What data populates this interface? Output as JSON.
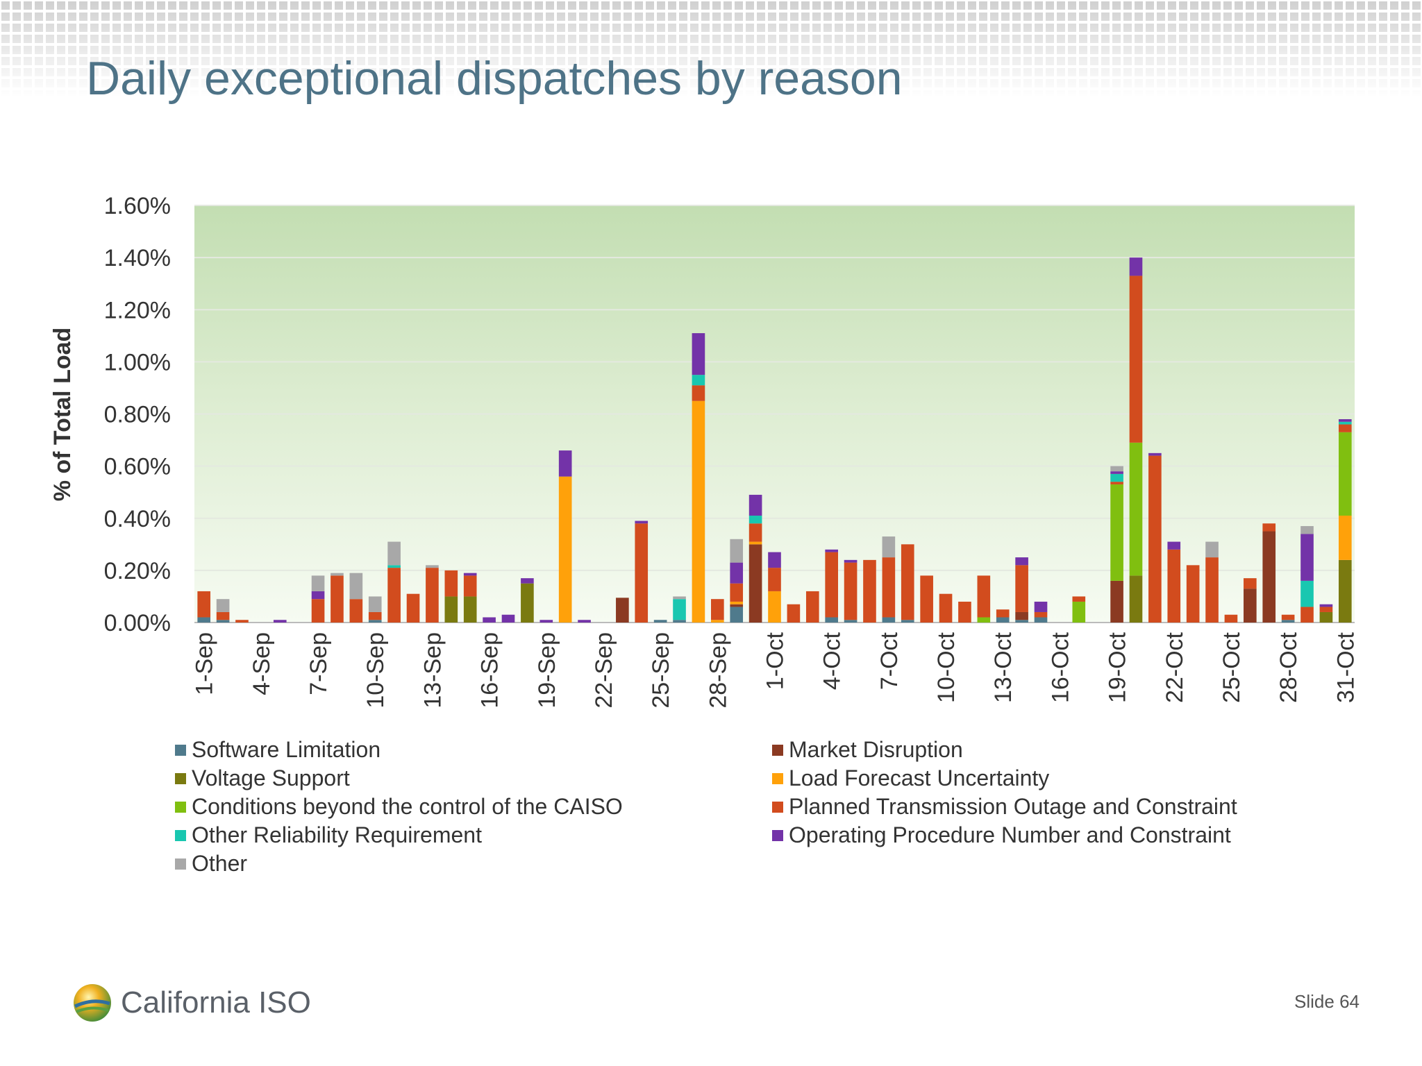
{
  "slide": {
    "title": "Daily exceptional dispatches by reason",
    "slide_number": "Slide 64",
    "logo_text": "California ISO"
  },
  "chart_data": {
    "type": "bar",
    "stacked": true,
    "title": "",
    "xlabel": "",
    "ylabel": "% of Total Load",
    "ylim": [
      0,
      1.6
    ],
    "yticks": [
      "0.00%",
      "0.20%",
      "0.40%",
      "0.60%",
      "0.80%",
      "1.00%",
      "1.20%",
      "1.40%",
      "1.60%"
    ],
    "grid": true,
    "legend_position": "bottom",
    "plot_background": "green gradient",
    "categories": [
      "1-Sep",
      "2-Sep",
      "3-Sep",
      "4-Sep",
      "5-Sep",
      "6-Sep",
      "7-Sep",
      "8-Sep",
      "9-Sep",
      "10-Sep",
      "11-Sep",
      "12-Sep",
      "13-Sep",
      "14-Sep",
      "15-Sep",
      "16-Sep",
      "17-Sep",
      "18-Sep",
      "19-Sep",
      "20-Sep",
      "21-Sep",
      "22-Sep",
      "23-Sep",
      "24-Sep",
      "25-Sep",
      "26-Sep",
      "27-Sep",
      "28-Sep",
      "29-Sep",
      "30-Sep",
      "1-Oct",
      "2-Oct",
      "3-Oct",
      "4-Oct",
      "5-Oct",
      "6-Oct",
      "7-Oct",
      "8-Oct",
      "9-Oct",
      "10-Oct",
      "11-Oct",
      "12-Oct",
      "13-Oct",
      "14-Oct",
      "15-Oct",
      "16-Oct",
      "17-Oct",
      "18-Oct",
      "19-Oct",
      "20-Oct",
      "21-Oct",
      "22-Oct",
      "23-Oct",
      "24-Oct",
      "25-Oct",
      "26-Oct",
      "27-Oct",
      "28-Oct",
      "29-Oct",
      "30-Oct",
      "31-Oct"
    ],
    "tick_labels": [
      "1-Sep",
      "4-Sep",
      "7-Sep",
      "10-Sep",
      "13-Sep",
      "16-Sep",
      "19-Sep",
      "22-Sep",
      "25-Sep",
      "28-Sep",
      "1-Oct",
      "4-Oct",
      "7-Oct",
      "10-Oct",
      "13-Oct",
      "16-Oct",
      "19-Oct",
      "22-Oct",
      "25-Oct",
      "28-Oct",
      "31-Oct"
    ],
    "series": [
      {
        "name": "Software Limitation",
        "color": "#4f7a8c",
        "values": [
          0.02,
          0.01,
          0,
          0,
          0,
          0,
          0,
          0,
          0,
          0.01,
          0,
          0,
          0,
          0,
          0,
          0,
          0,
          0,
          0,
          0,
          0,
          0,
          0,
          0,
          0.01,
          0.01,
          0,
          0,
          0.06,
          0,
          0,
          0,
          0,
          0.02,
          0.01,
          0,
          0.02,
          0.01,
          0,
          0,
          0,
          0,
          0.02,
          0.01,
          0.02,
          0,
          0,
          0,
          0,
          0,
          0,
          0,
          0,
          0,
          0,
          0,
          0,
          0.01,
          0,
          0,
          0
        ]
      },
      {
        "name": "Market Disruption",
        "color": "#8b3a22",
        "values": [
          0,
          0,
          0,
          0,
          0,
          0,
          0,
          0,
          0,
          0,
          0,
          0,
          0,
          0,
          0,
          0,
          0,
          0,
          0,
          0,
          0,
          0,
          0.095,
          0,
          0,
          0,
          0,
          0,
          0.01,
          0.3,
          0,
          0,
          0,
          0,
          0,
          0,
          0,
          0,
          0,
          0,
          0,
          0,
          0,
          0.03,
          0,
          0,
          0,
          0,
          0.16,
          0,
          0,
          0,
          0,
          0,
          0,
          0.13,
          0.35,
          0,
          0,
          0,
          0
        ]
      },
      {
        "name": "Voltage Support",
        "color": "#7a7a10",
        "values": [
          0,
          0,
          0,
          0,
          0,
          0,
          0,
          0,
          0,
          0,
          0,
          0,
          0,
          0.1,
          0.1,
          0,
          0,
          0.15,
          0,
          0,
          0,
          0,
          0,
          0,
          0,
          0,
          0,
          0,
          0,
          0,
          0,
          0,
          0,
          0,
          0,
          0,
          0,
          0,
          0,
          0,
          0,
          0,
          0,
          0,
          0,
          0,
          0,
          0,
          0,
          0.18,
          0,
          0,
          0,
          0,
          0,
          0,
          0,
          0,
          0,
          0.04,
          0.24
        ]
      },
      {
        "name": "Load Forecast Uncertainty",
        "color": "#ffa10a",
        "values": [
          0,
          0,
          0,
          0,
          0,
          0,
          0,
          0,
          0,
          0,
          0,
          0,
          0,
          0,
          0,
          0,
          0,
          0,
          0,
          0.56,
          0,
          0,
          0,
          0,
          0,
          0,
          0.85,
          0.01,
          0.01,
          0.01,
          0.12,
          0,
          0,
          0,
          0,
          0,
          0,
          0,
          0,
          0,
          0,
          0,
          0,
          0,
          0,
          0,
          0,
          0,
          0,
          0,
          0,
          0,
          0,
          0,
          0,
          0,
          0,
          0,
          0,
          0,
          0.17
        ]
      },
      {
        "name": "Conditions beyond the control of the CAISO",
        "color": "#80bf10",
        "values": [
          0,
          0,
          0,
          0,
          0,
          0,
          0,
          0,
          0,
          0,
          0,
          0,
          0,
          0,
          0,
          0,
          0,
          0,
          0,
          0,
          0,
          0,
          0,
          0,
          0,
          0,
          0,
          0,
          0,
          0,
          0,
          0,
          0,
          0,
          0,
          0,
          0,
          0,
          0,
          0,
          0,
          0.02,
          0,
          0,
          0,
          0,
          0.08,
          0,
          0.37,
          0.51,
          0,
          0,
          0,
          0,
          0,
          0,
          0,
          0,
          0,
          0,
          0.32
        ]
      },
      {
        "name": "Planned Transmission Outage and Constraint",
        "color": "#d24c1e",
        "values": [
          0.1,
          0.03,
          0.01,
          0,
          0,
          0,
          0.09,
          0.18,
          0.09,
          0.03,
          0.21,
          0.11,
          0.21,
          0.1,
          0.08,
          0,
          0,
          0,
          0,
          0,
          0,
          0,
          0,
          0.38,
          0,
          0,
          0.06,
          0.08,
          0.07,
          0.07,
          0.09,
          0.07,
          0.12,
          0.25,
          0.22,
          0.24,
          0.23,
          0.29,
          0.18,
          0.11,
          0.08,
          0.16,
          0.03,
          0.18,
          0.02,
          0,
          0.02,
          0,
          0.01,
          0.64,
          0.64,
          0.28,
          0.22,
          0.25,
          0.03,
          0.04,
          0.03,
          0.02,
          0.06,
          0.02,
          0.03
        ]
      },
      {
        "name": "Other Reliability Requirement",
        "color": "#19c7b0",
        "values": [
          0,
          0,
          0,
          0,
          0,
          0,
          0,
          0,
          0,
          0,
          0.01,
          0,
          0,
          0,
          0,
          0,
          0,
          0,
          0,
          0,
          0,
          0,
          0,
          0,
          0,
          0.08,
          0.04,
          0,
          0,
          0.03,
          0,
          0,
          0,
          0,
          0,
          0,
          0,
          0,
          0,
          0,
          0,
          0,
          0,
          0,
          0,
          0,
          0,
          0,
          0.03,
          0,
          0,
          0,
          0,
          0,
          0,
          0,
          0,
          0,
          0.1,
          0,
          0.01
        ]
      },
      {
        "name": "Operating Procedure Number and Constraint",
        "color": "#7333a8",
        "values": [
          0,
          0,
          0,
          0,
          0.01,
          0,
          0.03,
          0,
          0,
          0,
          0,
          0,
          0,
          0,
          0.01,
          0.02,
          0.03,
          0.02,
          0.01,
          0.1,
          0.01,
          0,
          0,
          0.01,
          0,
          0,
          0.16,
          0,
          0.08,
          0.08,
          0.06,
          0,
          0,
          0.01,
          0.01,
          0,
          0,
          0,
          0,
          0,
          0,
          0,
          0,
          0.03,
          0.04,
          0,
          0,
          0,
          0.01,
          0.07,
          0.01,
          0.03,
          0,
          0,
          0,
          0,
          0,
          0,
          0.18,
          0.01,
          0.01
        ]
      },
      {
        "name": "Other",
        "color": "#a8a8a8",
        "values": [
          0,
          0.05,
          0,
          0,
          0,
          0,
          0.06,
          0.01,
          0.1,
          0.06,
          0.09,
          0,
          0.01,
          0,
          0,
          0,
          0,
          0,
          0,
          0,
          0,
          0,
          0,
          0,
          0,
          0.01,
          0,
          0,
          0.09,
          0,
          0,
          0,
          0,
          0,
          0,
          0,
          0.08,
          0,
          0,
          0,
          0,
          0,
          0,
          0,
          0,
          0,
          0,
          0,
          0.02,
          0,
          0,
          0,
          0,
          0.06,
          0,
          0,
          0,
          0,
          0.03,
          0,
          0
        ]
      }
    ]
  }
}
